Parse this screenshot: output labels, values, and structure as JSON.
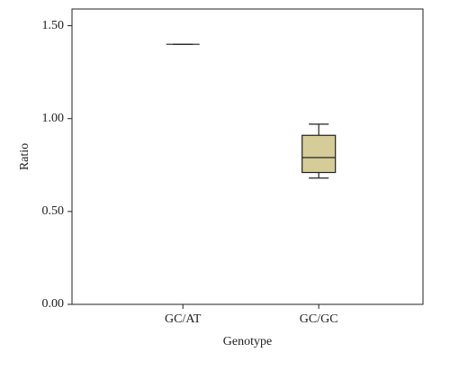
{
  "chart_data": {
    "type": "box",
    "x_label": "Genotype",
    "y_label": "Ratio",
    "categories": [
      "GC/AT",
      "GC/GC"
    ],
    "min": [
      1.4,
      0.68
    ],
    "q1": [
      1.4,
      0.71
    ],
    "median": [
      1.4,
      0.79
    ],
    "q3": [
      1.4,
      0.91
    ],
    "max": [
      1.4,
      0.97
    ],
    "color": "#d6cc98",
    "ylim": [
      0,
      1.59
    ],
    "yticks": [
      {
        "value": 0,
        "label": "0.00"
      },
      {
        "value": 0.5,
        "label": "0.50"
      },
      {
        "value": 1,
        "label": "1.00"
      },
      {
        "value": 1.5,
        "label": "1.50"
      }
    ]
  }
}
